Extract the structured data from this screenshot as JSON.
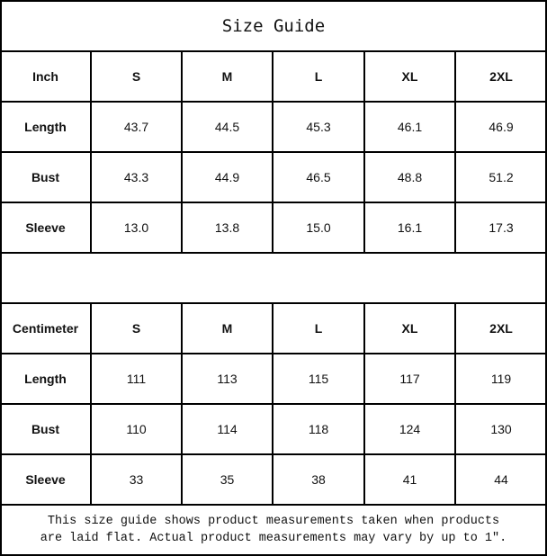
{
  "title": "Size Guide",
  "inch_table": {
    "header": [
      "Inch",
      "S",
      "M",
      "L",
      "XL",
      "2XL"
    ],
    "rows": [
      [
        "Length",
        "43.7",
        "44.5",
        "45.3",
        "46.1",
        "46.9"
      ],
      [
        "Bust",
        "43.3",
        "44.9",
        "46.5",
        "48.8",
        "51.2"
      ],
      [
        "Sleeve",
        "13.0",
        "13.8",
        "15.0",
        "16.1",
        "17.3"
      ]
    ]
  },
  "cm_table": {
    "header": [
      "Centimeter",
      "S",
      "M",
      "L",
      "XL",
      "2XL"
    ],
    "rows": [
      [
        "Length",
        "111",
        "113",
        "115",
        "117",
        "119"
      ],
      [
        "Bust",
        "110",
        "114",
        "118",
        "124",
        "130"
      ],
      [
        "Sleeve",
        "33",
        "35",
        "38",
        "41",
        "44"
      ]
    ]
  },
  "note": {
    "line1": "This size guide shows product measurements taken when products",
    "line2": "are laid flat. Actual product measurements may vary by up to 1″."
  }
}
